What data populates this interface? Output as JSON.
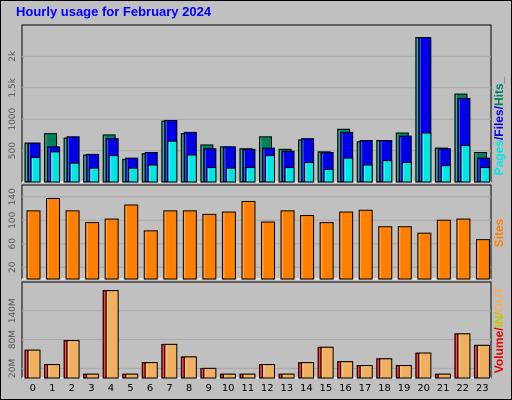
{
  "title": "Hourly usage for February 2024",
  "colors": {
    "background": "#c0c0c0",
    "title": "#0000ff",
    "hits": "#00805c",
    "files": "#0000e6",
    "pages": "#00e6e6",
    "sites": "#ff8000",
    "volume": "#e60000",
    "in": "#f0b060",
    "out": "#ffff00"
  },
  "side_labels": {
    "top": [
      "Pages",
      "/",
      "Files",
      "/",
      "Hits",
      "_"
    ],
    "middle": [
      "Sites"
    ],
    "bottom": [
      "Volume",
      "/",
      "IN",
      "/",
      "OUT"
    ]
  },
  "chart_data": [
    {
      "type": "bar",
      "name": "hits-files-pages",
      "categories": [
        "0",
        "1",
        "2",
        "3",
        "4",
        "5",
        "6",
        "7",
        "8",
        "9",
        "10",
        "11",
        "12",
        "13",
        "14",
        "15",
        "16",
        "17",
        "18",
        "19",
        "20",
        "21",
        "22",
        "23"
      ],
      "ylim": [
        0,
        2500
      ],
      "yticks": [
        "500",
        "1000",
        "1.5k",
        "2k"
      ],
      "ytick_values": [
        500,
        1000,
        1500,
        2000
      ],
      "grid": true,
      "series": [
        {
          "name": "Hits",
          "values": [
            620,
            770,
            700,
            430,
            750,
            360,
            450,
            970,
            770,
            590,
            560,
            530,
            720,
            520,
            670,
            480,
            840,
            640,
            660,
            780,
            2300,
            540,
            1400,
            470
          ]
        },
        {
          "name": "Files",
          "values": [
            620,
            560,
            720,
            440,
            690,
            380,
            470,
            980,
            790,
            530,
            560,
            520,
            540,
            490,
            690,
            470,
            790,
            660,
            660,
            730,
            2300,
            530,
            1330,
            380
          ]
        },
        {
          "name": "Pages",
          "values": [
            390,
            480,
            300,
            220,
            420,
            220,
            270,
            650,
            430,
            230,
            220,
            230,
            420,
            230,
            310,
            200,
            380,
            270,
            340,
            310,
            780,
            260,
            580,
            230
          ]
        }
      ]
    },
    {
      "type": "bar",
      "name": "sites",
      "categories": [
        "0",
        "1",
        "2",
        "3",
        "4",
        "5",
        "6",
        "7",
        "8",
        "9",
        "10",
        "11",
        "12",
        "13",
        "14",
        "15",
        "16",
        "17",
        "18",
        "19",
        "20",
        "21",
        "22",
        "23"
      ],
      "ylim": [
        0,
        160
      ],
      "yticks": [
        "20",
        "60",
        "100",
        "140"
      ],
      "ytick_values": [
        20,
        60,
        100,
        140
      ],
      "grid": true,
      "series": [
        {
          "name": "Sites",
          "values": [
            116,
            137,
            116,
            96,
            102,
            126,
            82,
            116,
            116,
            110,
            114,
            132,
            97,
            116,
            108,
            96,
            114,
            117,
            89,
            89,
            78,
            100,
            102,
            67
          ]
        }
      ]
    },
    {
      "type": "bar",
      "name": "volume",
      "categories": [
        "0",
        "1",
        "2",
        "3",
        "4",
        "5",
        "6",
        "7",
        "8",
        "9",
        "10",
        "11",
        "12",
        "13",
        "14",
        "15",
        "16",
        "17",
        "18",
        "19",
        "20",
        "21",
        "22",
        "23"
      ],
      "ylim": [
        0,
        200
      ],
      "yticks": [
        "20M",
        "80M",
        "140M"
      ],
      "ytick_values": [
        20,
        80,
        140
      ],
      "grid": true,
      "series": [
        {
          "name": "Volume",
          "values": [
            58,
            28,
            78,
            8,
            182,
            8,
            32,
            70,
            44,
            20,
            8,
            8,
            28,
            8,
            32,
            64,
            34,
            26,
            40,
            26,
            52,
            8,
            92,
            68
          ]
        },
        {
          "name": "IN",
          "values": [
            58,
            28,
            78,
            8,
            182,
            8,
            32,
            70,
            44,
            20,
            8,
            8,
            28,
            8,
            32,
            64,
            34,
            26,
            40,
            26,
            52,
            8,
            92,
            68
          ]
        }
      ]
    }
  ]
}
